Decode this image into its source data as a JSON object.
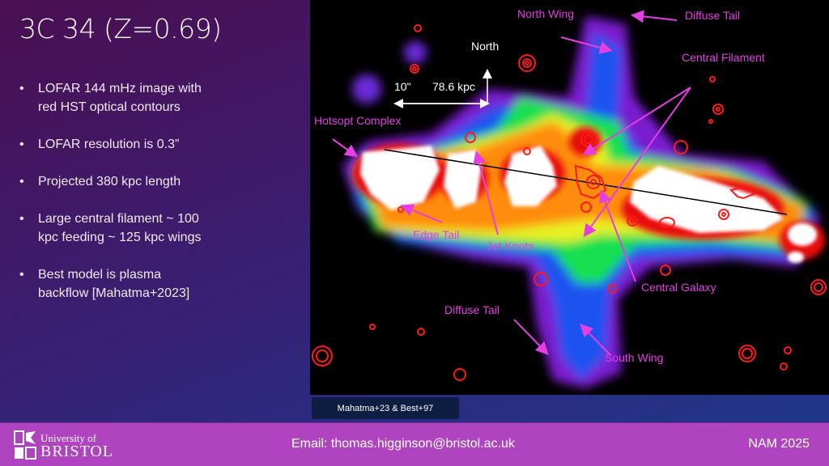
{
  "slide": {
    "title": "3C 34 (Z=0.69)",
    "bullets": [
      "LOFAR 144 mHz image with red HST optical contours",
      "LOFAR resolution is 0.3”",
      "Projected 380 kpc length",
      "Large central filament ~ 100 kpc feeding ~ 125 kpc wings",
      "Best model is plasma backflow [Mahatma+2023]"
    ]
  },
  "image": {
    "labels": {
      "north_wing": "North Wing",
      "diffuse_tail_top": "Diffuse Tail",
      "central_filament": "Central Filament",
      "hotspot_complex": "Hotsopt Complex",
      "edge_tail": "Edge Tail",
      "jet_knots": "Jet Knots",
      "central_galaxy": "Central Galaxy",
      "diffuse_tail_bottom": "Diffuse Tail",
      "south_wing": "South Wing"
    },
    "compass": {
      "north": "North",
      "scale_arcsec": "10\"",
      "scale_kpc": "78.6 kpc"
    },
    "label_color": "#e33fe3",
    "contour_color": "#ff1a1a"
  },
  "credit": "Mahatma+23 & Best+97",
  "footer": {
    "logo_line1": "University of",
    "logo_line2": "BRISTOL",
    "email": "Email: thomas.higginson@bristol.ac.uk",
    "event": "NAM 2025",
    "color": "#b044c0"
  }
}
